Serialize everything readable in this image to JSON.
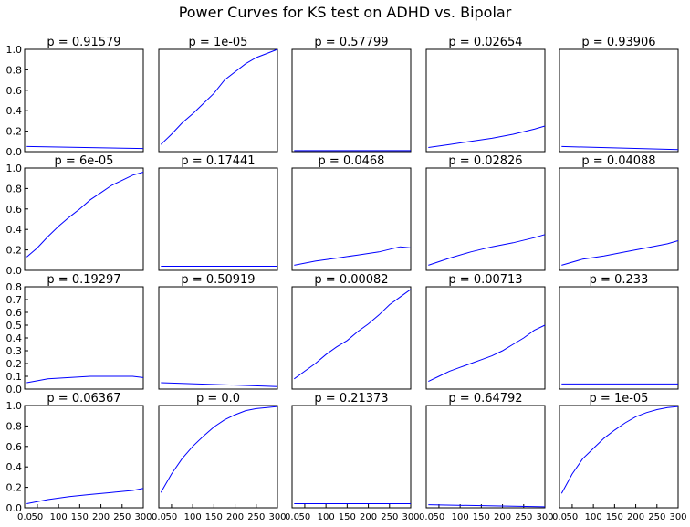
{
  "title": "Power Curves for KS test on ADHD vs. Bipolar",
  "chart_data": {
    "type": "line",
    "title": "Power Curves for KS test on ADHD vs. Bipolar",
    "line_color": "#0000ff",
    "grid": false,
    "layout": "4x5 grid of subplots",
    "bottom_row_xticks": [
      "0.0",
      "50",
      "100",
      "150",
      "200",
      "250",
      "300"
    ],
    "panels": [
      {
        "title": "p = 0.91579",
        "xlim": [
          20,
          300
        ],
        "ylim": [
          0,
          1.0
        ],
        "yticks": [
          "1.0",
          "0.8",
          "0.6",
          "0.4",
          "0.2",
          "0.0"
        ],
        "x": [
          25,
          300
        ],
        "y": [
          0.05,
          0.03
        ]
      },
      {
        "title": "p = 1e-05",
        "xlim": [
          20,
          300
        ],
        "ylim": [
          0,
          1.0
        ],
        "yticks": [],
        "x": [
          25,
          50,
          75,
          100,
          125,
          150,
          175,
          200,
          225,
          250,
          275,
          300
        ],
        "y": [
          0.07,
          0.17,
          0.28,
          0.37,
          0.47,
          0.57,
          0.7,
          0.78,
          0.86,
          0.92,
          0.96,
          1.0
        ]
      },
      {
        "title": "p = 0.57799",
        "xlim": [
          20,
          300
        ],
        "ylim": [
          0,
          1.0
        ],
        "yticks": [],
        "x": [
          25,
          300
        ],
        "y": [
          0.01,
          0.01
        ]
      },
      {
        "title": "p = 0.02654",
        "xlim": [
          20,
          300
        ],
        "ylim": [
          0,
          1.0
        ],
        "yticks": [],
        "x": [
          25,
          75,
          125,
          175,
          225,
          275,
          300
        ],
        "y": [
          0.04,
          0.07,
          0.1,
          0.13,
          0.17,
          0.22,
          0.25
        ]
      },
      {
        "title": "p = 0.93906",
        "xlim": [
          20,
          300
        ],
        "ylim": [
          0,
          1.0
        ],
        "yticks": [],
        "x": [
          25,
          300
        ],
        "y": [
          0.05,
          0.02
        ]
      },
      {
        "title": "p = 6e-05",
        "xlim": [
          20,
          300
        ],
        "ylim": [
          0,
          1.0
        ],
        "yticks": [
          "1.0",
          "0.8",
          "0.6",
          "0.4",
          "0.2",
          "0.0"
        ],
        "x": [
          25,
          50,
          75,
          100,
          125,
          150,
          175,
          200,
          225,
          250,
          275,
          300
        ],
        "y": [
          0.13,
          0.22,
          0.33,
          0.43,
          0.52,
          0.6,
          0.69,
          0.76,
          0.83,
          0.88,
          0.93,
          0.96
        ]
      },
      {
        "title": "p = 0.17441",
        "xlim": [
          20,
          300
        ],
        "ylim": [
          0,
          1.0
        ],
        "yticks": [],
        "x": [
          25,
          300
        ],
        "y": [
          0.04,
          0.04
        ]
      },
      {
        "title": "p = 0.0468",
        "xlim": [
          20,
          300
        ],
        "ylim": [
          0,
          1.0
        ],
        "yticks": [],
        "x": [
          25,
          75,
          125,
          175,
          225,
          275,
          300
        ],
        "y": [
          0.05,
          0.09,
          0.12,
          0.15,
          0.18,
          0.23,
          0.22
        ]
      },
      {
        "title": "p = 0.02826",
        "xlim": [
          20,
          300
        ],
        "ylim": [
          0,
          1.0
        ],
        "yticks": [],
        "x": [
          25,
          75,
          125,
          175,
          225,
          275,
          300
        ],
        "y": [
          0.05,
          0.12,
          0.18,
          0.23,
          0.27,
          0.32,
          0.35
        ]
      },
      {
        "title": "p = 0.04088",
        "xlim": [
          20,
          300
        ],
        "ylim": [
          0,
          1.0
        ],
        "yticks": [],
        "x": [
          25,
          75,
          125,
          175,
          225,
          275,
          300
        ],
        "y": [
          0.05,
          0.11,
          0.14,
          0.18,
          0.22,
          0.26,
          0.29
        ]
      },
      {
        "title": "p = 0.19297",
        "xlim": [
          20,
          300
        ],
        "ylim": [
          0,
          0.8
        ],
        "yticks": [
          "0.8",
          "0.7",
          "0.6",
          "0.5",
          "0.4",
          "0.3",
          "0.2",
          "0.1",
          "0.0"
        ],
        "x": [
          25,
          75,
          125,
          175,
          225,
          275,
          300
        ],
        "y": [
          0.05,
          0.08,
          0.09,
          0.1,
          0.1,
          0.1,
          0.09
        ]
      },
      {
        "title": "p = 0.50919",
        "xlim": [
          20,
          300
        ],
        "ylim": [
          0,
          0.8
        ],
        "yticks": [],
        "x": [
          25,
          300
        ],
        "y": [
          0.05,
          0.02
        ]
      },
      {
        "title": "p = 0.00082",
        "xlim": [
          20,
          300
        ],
        "ylim": [
          0,
          0.8
        ],
        "yticks": [],
        "x": [
          25,
          50,
          75,
          100,
          125,
          150,
          175,
          200,
          225,
          250,
          275,
          300
        ],
        "y": [
          0.08,
          0.14,
          0.2,
          0.27,
          0.33,
          0.38,
          0.45,
          0.51,
          0.58,
          0.66,
          0.72,
          0.78
        ]
      },
      {
        "title": "p = 0.00713",
        "xlim": [
          20,
          300
        ],
        "ylim": [
          0,
          0.8
        ],
        "yticks": [],
        "x": [
          25,
          50,
          75,
          100,
          125,
          150,
          175,
          200,
          225,
          250,
          275,
          300
        ],
        "y": [
          0.06,
          0.1,
          0.14,
          0.17,
          0.2,
          0.23,
          0.26,
          0.3,
          0.35,
          0.4,
          0.46,
          0.5
        ]
      },
      {
        "title": "p = 0.233",
        "xlim": [
          20,
          300
        ],
        "ylim": [
          0,
          0.8
        ],
        "yticks": [],
        "x": [
          25,
          300
        ],
        "y": [
          0.04,
          0.04
        ]
      },
      {
        "title": "p = 0.06367",
        "xlim": [
          20,
          300
        ],
        "ylim": [
          0,
          1.0
        ],
        "yticks": [
          "1.0",
          "0.8",
          "0.6",
          "0.4",
          "0.2",
          "0.0"
        ],
        "x": [
          25,
          75,
          125,
          175,
          225,
          275,
          300
        ],
        "y": [
          0.04,
          0.08,
          0.11,
          0.13,
          0.15,
          0.17,
          0.19
        ]
      },
      {
        "title": "p = 0.0",
        "xlim": [
          20,
          300
        ],
        "ylim": [
          0,
          1.0
        ],
        "yticks": [],
        "x": [
          25,
          50,
          75,
          100,
          125,
          150,
          175,
          200,
          225,
          250,
          275,
          300
        ],
        "y": [
          0.15,
          0.33,
          0.48,
          0.6,
          0.7,
          0.79,
          0.86,
          0.91,
          0.95,
          0.97,
          0.98,
          0.99
        ]
      },
      {
        "title": "p = 0.21373",
        "xlim": [
          20,
          300
        ],
        "ylim": [
          0,
          1.0
        ],
        "yticks": [],
        "x": [
          25,
          300
        ],
        "y": [
          0.04,
          0.04
        ]
      },
      {
        "title": "p = 0.64792",
        "xlim": [
          20,
          300
        ],
        "ylim": [
          0,
          1.0
        ],
        "yticks": [],
        "x": [
          25,
          300
        ],
        "y": [
          0.03,
          0.01
        ]
      },
      {
        "title": "p = 1e-05",
        "xlim": [
          20,
          300
        ],
        "ylim": [
          0,
          1.0
        ],
        "yticks": [],
        "x": [
          25,
          50,
          75,
          100,
          125,
          150,
          175,
          200,
          225,
          250,
          275,
          300
        ],
        "y": [
          0.14,
          0.33,
          0.48,
          0.58,
          0.68,
          0.76,
          0.83,
          0.89,
          0.93,
          0.96,
          0.98,
          0.99
        ]
      }
    ]
  }
}
